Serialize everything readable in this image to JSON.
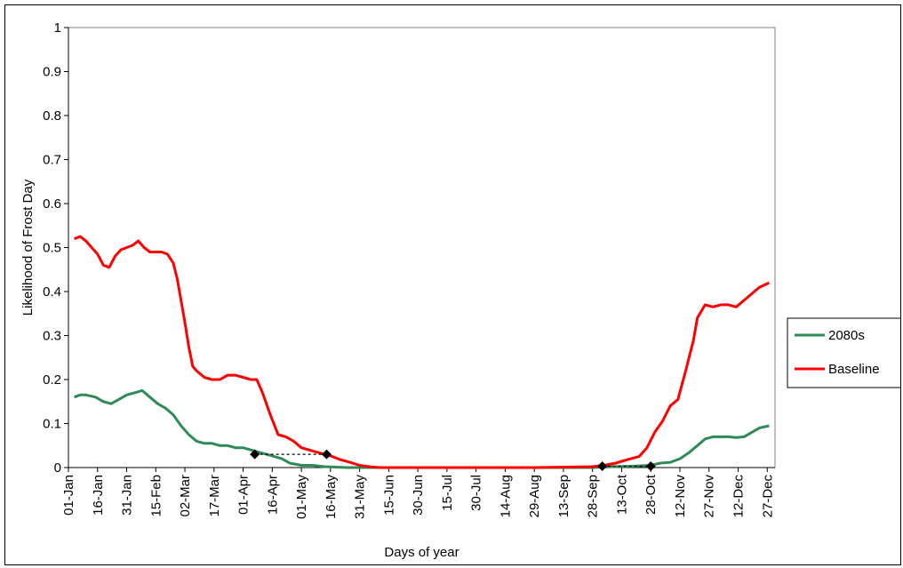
{
  "chart_data": {
    "type": "line",
    "xlabel": "Days of year",
    "ylabel": "Likelihood of Frost Day",
    "ylim": [
      0,
      1
    ],
    "xlim": [
      0,
      364
    ],
    "y_ticks": [
      0,
      0.1,
      0.2,
      0.3,
      0.4,
      0.5,
      0.6,
      0.7,
      0.8,
      0.9,
      1
    ],
    "y_tick_labels": [
      "0",
      "0.1",
      "0.2",
      "0.3",
      "0.4",
      "0.5",
      "0.6",
      "0.7",
      "0.8",
      "0.9",
      "1"
    ],
    "x_ticks": [
      0,
      15,
      30,
      45,
      60,
      75,
      90,
      105,
      120,
      135,
      150,
      165,
      180,
      195,
      210,
      225,
      240,
      255,
      270,
      285,
      300,
      315,
      330,
      345,
      360
    ],
    "x_tick_labels": [
      "01-Jan",
      "16-Jan",
      "31-Jan",
      "15-Feb",
      "02-Mar",
      "17-Mar",
      "01-Apr",
      "16-Apr",
      "01-May",
      "16-May",
      "31-May",
      "15-Jun",
      "30-Jun",
      "15-Jul",
      "30-Jul",
      "14-Aug",
      "29-Aug",
      "13-Sep",
      "28-Sep",
      "13-Oct",
      "28-Oct",
      "12-Nov",
      "27-Nov",
      "12-Dec",
      "27-Dec"
    ],
    "grid": false,
    "legend_position": "right",
    "series": [
      {
        "name": "2080s",
        "color": "#2e8b57",
        "x": [
          3,
          6,
          9,
          14,
          18,
          22,
          26,
          30,
          34,
          38,
          42,
          46,
          50,
          54,
          58,
          62,
          66,
          70,
          74,
          78,
          82,
          86,
          90,
          94,
          98,
          102,
          106,
          110,
          114,
          120,
          126,
          132,
          138,
          144,
          150,
          160,
          200,
          240,
          270,
          280,
          290,
          300,
          305,
          310,
          315,
          320,
          324,
          328,
          332,
          336,
          340,
          344,
          348,
          352,
          356,
          361
        ],
        "y": [
          0.16,
          0.165,
          0.165,
          0.16,
          0.15,
          0.145,
          0.155,
          0.165,
          0.17,
          0.175,
          0.16,
          0.145,
          0.135,
          0.12,
          0.095,
          0.075,
          0.06,
          0.055,
          0.055,
          0.05,
          0.05,
          0.045,
          0.045,
          0.04,
          0.035,
          0.03,
          0.025,
          0.02,
          0.01,
          0.005,
          0.005,
          0.002,
          0.001,
          0.0,
          0.0,
          0.0,
          0.0,
          0.0,
          0.0,
          0.002,
          0.003,
          0.005,
          0.01,
          0.012,
          0.02,
          0.035,
          0.05,
          0.065,
          0.07,
          0.07,
          0.07,
          0.068,
          0.07,
          0.08,
          0.09,
          0.095
        ]
      },
      {
        "name": "Baseline",
        "color": "#ff0000",
        "x": [
          3,
          6,
          9,
          12,
          15,
          18,
          21,
          24,
          27,
          30,
          33,
          36,
          39,
          42,
          45,
          48,
          51,
          54,
          56,
          58,
          60,
          62,
          64,
          66,
          70,
          74,
          78,
          82,
          86,
          90,
          94,
          97,
          100,
          104,
          108,
          112,
          116,
          120,
          124,
          128,
          132,
          136,
          140,
          145,
          150,
          155,
          160,
          200,
          240,
          270,
          276,
          282,
          288,
          294,
          298,
          302,
          306,
          310,
          314,
          318,
          322,
          324,
          328,
          332,
          336,
          340,
          344,
          348,
          352,
          356,
          361
        ],
        "y": [
          0.52,
          0.525,
          0.515,
          0.5,
          0.485,
          0.46,
          0.455,
          0.48,
          0.495,
          0.5,
          0.505,
          0.515,
          0.5,
          0.49,
          0.49,
          0.49,
          0.485,
          0.465,
          0.43,
          0.38,
          0.33,
          0.275,
          0.23,
          0.22,
          0.205,
          0.2,
          0.2,
          0.21,
          0.21,
          0.205,
          0.2,
          0.2,
          0.17,
          0.12,
          0.075,
          0.07,
          0.06,
          0.045,
          0.04,
          0.035,
          0.03,
          0.025,
          0.018,
          0.012,
          0.005,
          0.002,
          0.0,
          0.0,
          0.0,
          0.002,
          0.005,
          0.01,
          0.018,
          0.025,
          0.045,
          0.08,
          0.105,
          0.14,
          0.155,
          0.22,
          0.29,
          0.34,
          0.37,
          0.365,
          0.37,
          0.37,
          0.365,
          0.38,
          0.395,
          0.41,
          0.42
        ]
      }
    ],
    "markers": {
      "points": [
        {
          "x": 96,
          "y": 0.03
        },
        {
          "x": 133,
          "y": 0.03
        },
        {
          "x": 275,
          "y": 0.003
        },
        {
          "x": 300,
          "y": 0.003
        }
      ],
      "dotted_segments": [
        {
          "x1": 96,
          "x2": 133,
          "y": 0.03
        },
        {
          "x1": 275,
          "x2": 300,
          "y": 0.003
        }
      ]
    }
  }
}
